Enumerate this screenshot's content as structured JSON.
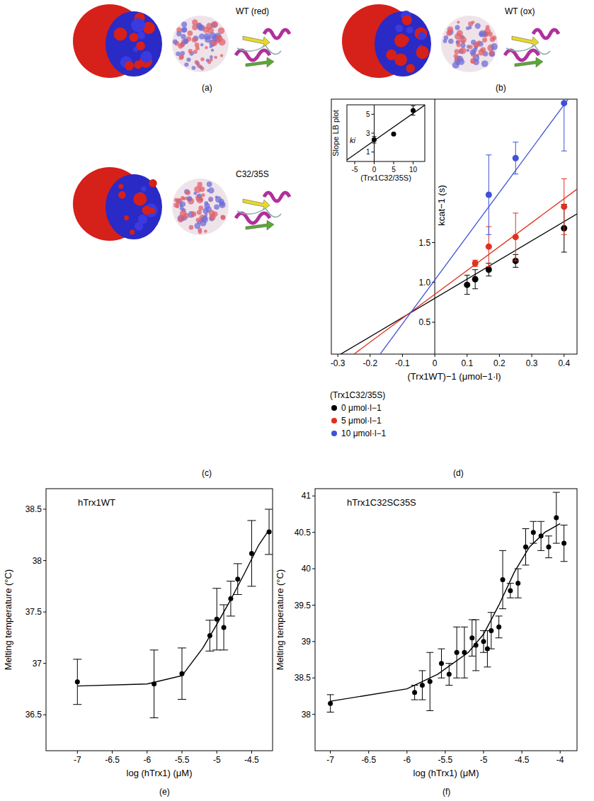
{
  "images": [
    {
      "panel_label": "(a)",
      "label": "WT (red)"
    },
    {
      "panel_label": "(b)",
      "label": "WT (ox)"
    },
    {
      "panel_label": "(c)",
      "label": "C32/35S"
    }
  ],
  "chart_data": [
    {
      "type": "scatter",
      "panel_label": "(d)",
      "x_label": "(Trx1WT)−1 (μmol−1·l)",
      "y_label": "kcat−1 (s)",
      "xlim": [
        -0.32,
        0.44
      ],
      "xticks": [
        -0.3,
        -0.2,
        -0.1,
        0,
        0.1,
        0.2,
        0.3,
        0.4
      ],
      "ylim": [
        0.1,
        3.3
      ],
      "yticks": [
        0.5,
        {
          "value": 1,
          "label": "1.0"
        },
        1.5
      ],
      "legend": "bottom-left",
      "legend_title": "(Trx1C32/35S)",
      "series": [
        {
          "name": "0 μmol·l−1",
          "color": "#000000",
          "marker": "circle",
          "x": [
            0.1,
            0.125,
            0.167,
            0.25,
            0.4
          ],
          "values": [
            0.97,
            1.04,
            1.16,
            1.27,
            1.68
          ],
          "errors": [
            0.12,
            0.12,
            0.08,
            0.08,
            0.3
          ],
          "fit_x": [
            -0.32,
            0.44
          ],
          "fit_values": [
            0.03,
            1.86
          ]
        },
        {
          "name": "5 μmol·l−1",
          "color": "#e0301e",
          "marker": "circle",
          "x": [
            0.125,
            0.167,
            0.25,
            0.4
          ],
          "values": [
            1.24,
            1.45,
            1.57,
            1.95
          ],
          "errors": [
            0.04,
            0.25,
            0.3,
            0.35
          ],
          "fit_x": [
            -0.32,
            0.44
          ],
          "fit_values": [
            -0.11,
            2.17
          ]
        },
        {
          "name": "10 μmol·l−1",
          "color": "#3f51d8",
          "marker": "circle",
          "x": [
            0.167,
            0.25,
            0.4
          ],
          "values": [
            2.1,
            2.56,
            3.25
          ],
          "errors": [
            0.5,
            0.2,
            0.6
          ],
          "fit_x": [
            -0.32,
            0.44
          ],
          "fit_values": [
            -0.73,
            3.45
          ]
        }
      ]
    },
    {
      "type": "scatter",
      "x_label": "(Trx1C32/35S)",
      "y_label": "Slope LB plot",
      "annotations": [
        "ki"
      ],
      "xlim": [
        -7,
        13
      ],
      "xticks": [
        -5,
        0,
        5,
        10
      ],
      "ylim": [
        0,
        6
      ],
      "yticks": [
        1,
        3,
        5
      ],
      "series": [
        {
          "color": "#000000",
          "marker": "circle",
          "x": [
            0,
            5,
            10
          ],
          "values": [
            2.3,
            2.9,
            5.4
          ],
          "errors": [
            0.35,
            0,
            0.5
          ],
          "fit_x": [
            -7,
            13
          ],
          "fit_values": [
            0.17,
            5.97
          ]
        }
      ]
    },
    {
      "type": "scatter",
      "panel_label": "(e)",
      "title": "hTrx1WT",
      "x_label": "log (hTrx1) (μM)",
      "y_label": "Melting temperature (°C)",
      "xlim": [
        -7.45,
        -4.2
      ],
      "xticks": [
        -7,
        -6.5,
        -6,
        -5.5,
        -5,
        -4.5
      ],
      "ylim": [
        36.15,
        38.7
      ],
      "yticks": [
        36.5,
        37,
        37.5,
        38,
        38.5
      ],
      "series": [
        {
          "type": "scatter",
          "color": "#000000",
          "marker": "circle",
          "x": [
            -7,
            -5.9,
            -5.5,
            -5.1,
            -5,
            -4.9,
            -4.8,
            -4.7,
            -4.5,
            -4.25
          ],
          "values": [
            36.82,
            36.8,
            36.9,
            37.27,
            37.43,
            37.35,
            37.63,
            37.82,
            38.07,
            38.28
          ],
          "errors": [
            0.22,
            0.33,
            0.25,
            0.15,
            0.3,
            0.22,
            0.17,
            0.15,
            0.32,
            0.22
          ]
        },
        {
          "type": "line",
          "color": "#000000",
          "x": [
            -7,
            -6,
            -5.5,
            -5.2,
            -5,
            -4.8,
            -4.6,
            -4.4,
            -4.25
          ],
          "values": [
            36.78,
            36.8,
            36.88,
            37.15,
            37.38,
            37.62,
            37.88,
            38.15,
            38.3
          ]
        }
      ]
    },
    {
      "type": "scatter",
      "panel_label": "(f)",
      "title": "hTrx1C32SC35S",
      "x_label": "log (hTrx1) (μM)",
      "y_label": "Melting temperature (°C)",
      "xlim": [
        -7.2,
        -3.78
      ],
      "xticks": [
        -7,
        -6.5,
        -6,
        -5.5,
        -5,
        -4.5,
        -4
      ],
      "ylim": [
        37.5,
        41.1
      ],
      "yticks": [
        38,
        38.5,
        39,
        39.5,
        40,
        40.5,
        41
      ],
      "series": [
        {
          "type": "scatter",
          "color": "#000000",
          "marker": "circle",
          "x": [
            -7,
            -5.9,
            -5.8,
            -5.7,
            -5.55,
            -5.45,
            -5.35,
            -5.25,
            -5.15,
            -5.1,
            -5,
            -4.95,
            -4.9,
            -4.8,
            -4.75,
            -4.65,
            -4.55,
            -4.45,
            -4.35,
            -4.25,
            -4.15,
            -4.05,
            -3.95
          ],
          "values": [
            38.15,
            38.3,
            38.4,
            38.45,
            38.7,
            38.55,
            38.85,
            38.85,
            39.05,
            38.95,
            39,
            38.9,
            39.15,
            39.2,
            39.85,
            39.7,
            39.8,
            40.3,
            40.5,
            40.45,
            40.3,
            40.7,
            40.35
          ],
          "errors": [
            0.12,
            0.1,
            0.2,
            0.4,
            0.2,
            0.15,
            0.35,
            0.35,
            0.25,
            0.35,
            0.15,
            0.25,
            0.25,
            0.15,
            0.4,
            0.1,
            0.2,
            0.25,
            0.15,
            0.2,
            0.15,
            0.35,
            0.25
          ]
        },
        {
          "type": "line",
          "color": "#000000",
          "x": [
            -7,
            -6,
            -5.6,
            -5.2,
            -5,
            -4.8,
            -4.6,
            -4.4,
            -4.2,
            -4
          ],
          "values": [
            38.18,
            38.35,
            38.55,
            38.85,
            39.1,
            39.5,
            39.95,
            40.3,
            40.5,
            40.62
          ]
        }
      ]
    }
  ]
}
